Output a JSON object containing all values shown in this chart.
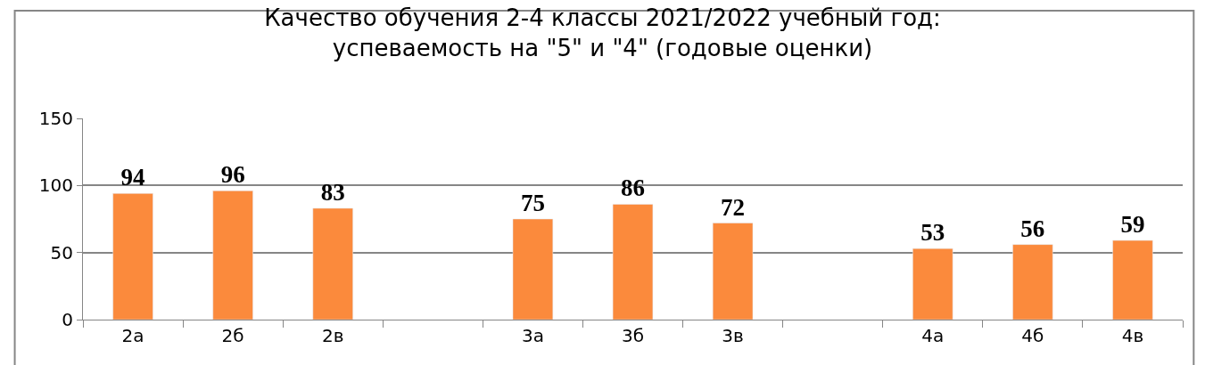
{
  "chart_data": {
    "type": "bar",
    "title": "Качество обучения 2-4 классы 2021/2022 учебный год:\nуспеваемость на \"5\" и \"4\" (годовые оценки)",
    "categories": [
      "2а",
      "2б",
      "2в",
      null,
      "3а",
      "3б",
      "3в",
      null,
      "4а",
      "4б",
      "4в"
    ],
    "values": [
      94,
      96,
      83,
      null,
      75,
      86,
      72,
      null,
      53,
      56,
      59
    ],
    "color": "#fb8a3c",
    "ylim": [
      0,
      150
    ],
    "yticks": [
      0,
      50,
      100,
      150
    ],
    "grid": "y",
    "data_labels": true,
    "legend": false
  }
}
